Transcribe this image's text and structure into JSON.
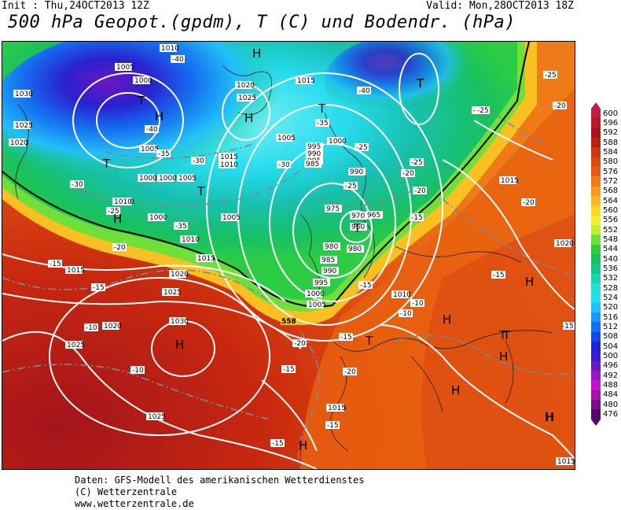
{
  "header": {
    "init": "Init : Thu,24OCT2013 12Z",
    "valid": "Valid: Mon,28OCT2013 18Z",
    "title": "500 hPa Geopot.(gpdm), T (C) und Bodendr. (hPa)"
  },
  "footer": {
    "line1": "Daten: GFS-Modell des amerikanischen Wetterdienstes",
    "line2": "(C) Wetterzentrale",
    "line3": "www.wetterzentrale.de"
  },
  "legend": [
    {
      "value": "600",
      "color": "#c21e45"
    },
    {
      "value": "596",
      "color": "#b81a2a"
    },
    {
      "value": "592",
      "color": "#a4141c"
    },
    {
      "value": "588",
      "color": "#b8200e"
    },
    {
      "value": "584",
      "color": "#cf3610"
    },
    {
      "value": "580",
      "color": "#dc4a12"
    },
    {
      "value": "576",
      "color": "#e65c14"
    },
    {
      "value": "572",
      "color": "#ee7a18"
    },
    {
      "value": "568",
      "color": "#f49a1c"
    },
    {
      "value": "564",
      "color": "#f8b820"
    },
    {
      "value": "560",
      "color": "#fbd624"
    },
    {
      "value": "556",
      "color": "#f4f02a"
    },
    {
      "value": "552",
      "color": "#bff030"
    },
    {
      "value": "548",
      "color": "#6ee038"
    },
    {
      "value": "544",
      "color": "#2ccd44"
    },
    {
      "value": "540",
      "color": "#18c060"
    },
    {
      "value": "536",
      "color": "#14c888"
    },
    {
      "value": "532",
      "color": "#18d6b0"
    },
    {
      "value": "528",
      "color": "#20e0d0"
    },
    {
      "value": "524",
      "color": "#28dcf0"
    },
    {
      "value": "520",
      "color": "#22c0f8"
    },
    {
      "value": "516",
      "color": "#1898f8"
    },
    {
      "value": "512",
      "color": "#1470f0"
    },
    {
      "value": "508",
      "color": "#1448e8"
    },
    {
      "value": "504",
      "color": "#1c28d8"
    },
    {
      "value": "500",
      "color": "#3a1cc8"
    },
    {
      "value": "496",
      "color": "#6a18c0"
    },
    {
      "value": "492",
      "color": "#9a14c4"
    },
    {
      "value": "488",
      "color": "#c414c8"
    },
    {
      "value": "484",
      "color": "#a810a8"
    },
    {
      "value": "480",
      "color": "#7c0c88"
    },
    {
      "value": "476",
      "color": "#520868"
    }
  ],
  "map_labels": {
    "pressure": [
      "1010",
      "1005",
      "1000",
      "1030",
      "1025",
      "1020",
      "1025",
      "1020",
      "1015",
      "1005",
      "1000",
      "995",
      "990",
      "1000",
      "995",
      "990",
      "985",
      "980",
      "975",
      "970",
      "960",
      "965",
      "980",
      "985",
      "990",
      "995",
      "1000",
      "1005",
      "1010",
      "1015",
      "1010",
      "1005",
      "1000",
      "1005",
      "1010",
      "1015",
      "1020",
      "1025",
      "1030",
      "1025",
      "1020",
      "1025",
      "1015",
      "1015",
      "1020",
      "1010",
      "1015",
      "1010",
      "1015",
      "1005",
      "1000",
      "1015",
      "1020",
      "1025"
    ],
    "temperature": [
      "-40",
      "-35",
      "-30",
      "-40",
      "-35",
      "-30",
      "-25",
      "-20",
      "-15",
      "-40",
      "-35",
      "-30",
      "-25",
      "-25",
      "-25",
      "-20",
      "-20",
      "-15",
      "-15",
      "-10",
      "-10",
      "-15",
      "-20",
      "-20",
      "-25",
      "-15",
      "-20",
      "-25",
      "-20",
      "-15",
      "-10",
      "-20",
      "-15",
      "-15",
      "-15",
      "-15",
      "-10"
    ],
    "highs_lows": [
      "H",
      "T",
      "H",
      "T",
      "T",
      "H",
      "T",
      "H",
      "T",
      "H",
      "T",
      "H",
      "T",
      "H",
      "H",
      "T",
      "T",
      "H",
      "H",
      "H",
      "H"
    ],
    "contour_558": "558"
  }
}
